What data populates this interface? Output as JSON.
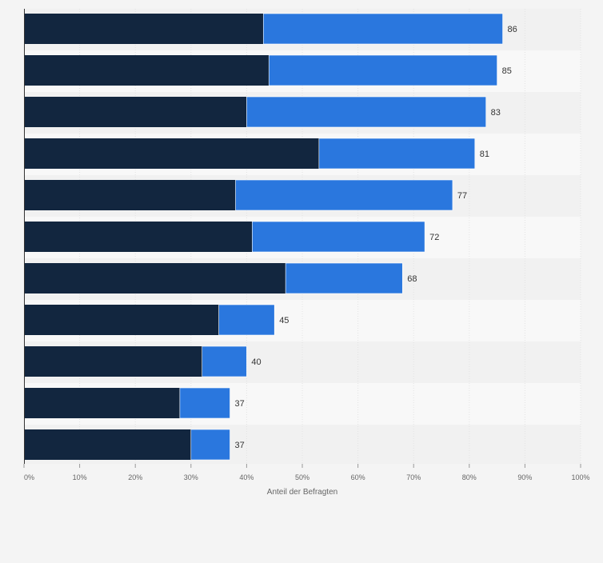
{
  "chart_data": {
    "type": "bar",
    "orientation": "horizontal",
    "stacked": true,
    "categories": [
      "",
      "",
      "",
      "",
      "",
      "",
      "",
      "",
      "",
      "",
      ""
    ],
    "series": [
      {
        "values": [
          43,
          44,
          40,
          53,
          38,
          41,
          47,
          35,
          32,
          28,
          30
        ]
      },
      {
        "values": [
          43,
          41,
          43,
          28,
          39,
          31,
          21,
          10,
          8,
          9,
          7
        ]
      }
    ],
    "totals": [
      86,
      85,
      83,
      81,
      77,
      72,
      68,
      45,
      40,
      37,
      37
    ],
    "xlabel": "Anteil der Befragten",
    "ylabel": "",
    "xlim": [
      0,
      100
    ],
    "x_ticks": [
      "0%",
      "10%",
      "20%",
      "30%",
      "40%",
      "50%",
      "60%",
      "70%",
      "80%",
      "90%",
      "100%"
    ],
    "grid": true,
    "legend": "none",
    "colors": {
      "series": [
        "#12263f",
        "#2a77de"
      ],
      "row_band_light": "#f8f8f8",
      "row_band_dark": "#f1f1f1",
      "grid": "#e3e3e3",
      "axis": "#333333"
    }
  }
}
